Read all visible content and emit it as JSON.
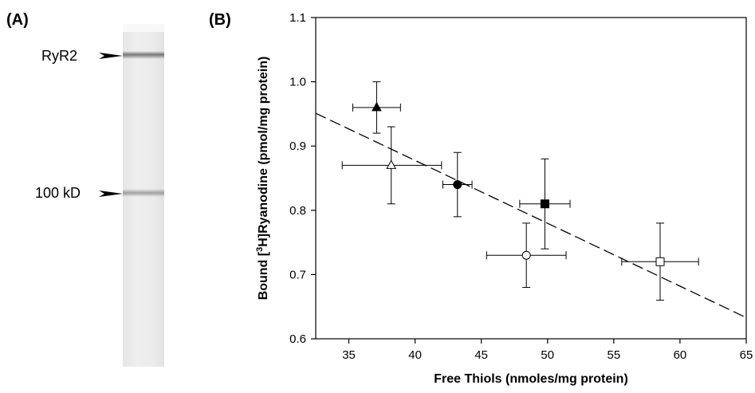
{
  "panel_a": {
    "label": "(A)",
    "bands": [
      {
        "name": "RyR2"
      },
      {
        "name": "100 kD"
      }
    ]
  },
  "panel_b": {
    "label": "(B)"
  },
  "chart_data": {
    "type": "scatter",
    "title": "",
    "xlabel": "Free Thiols (nmoles/mg protein)",
    "ylabel_parts": [
      "Bound [",
      "3",
      "H]Ryanodine (pmol/mg protein)"
    ],
    "xlim": [
      32.5,
      65
    ],
    "ylim": [
      0.6,
      1.1
    ],
    "x_ticks": [
      35,
      40,
      45,
      50,
      55,
      60,
      65
    ],
    "y_ticks": [
      0.6,
      0.7,
      0.8,
      0.9,
      1.0,
      1.1
    ],
    "x_tick_labels": [
      "35",
      "40",
      "45",
      "50",
      "55",
      "60",
      "65"
    ],
    "y_tick_labels": [
      "0.6",
      "0.7",
      "0.8",
      "0.9",
      "1.0",
      "1.1"
    ],
    "grid": false,
    "points": [
      {
        "marker": "triangle-filled",
        "x": 37.1,
        "y": 0.96,
        "x_err": [
          35.3,
          38.9
        ],
        "y_err": [
          0.92,
          1.0
        ]
      },
      {
        "marker": "triangle-open",
        "x": 38.2,
        "y": 0.87,
        "x_err": [
          34.5,
          42.0
        ],
        "y_err": [
          0.81,
          0.93
        ]
      },
      {
        "marker": "circle-filled",
        "x": 43.2,
        "y": 0.84,
        "x_err": [
          42.1,
          44.3
        ],
        "y_err": [
          0.79,
          0.89
        ]
      },
      {
        "marker": "square-filled",
        "x": 49.8,
        "y": 0.81,
        "x_err": [
          47.9,
          51.7
        ],
        "y_err": [
          0.74,
          0.88
        ]
      },
      {
        "marker": "circle-open",
        "x": 48.4,
        "y": 0.73,
        "x_err": [
          45.4,
          51.4
        ],
        "y_err": [
          0.68,
          0.78
        ]
      },
      {
        "marker": "square-open",
        "x": 58.5,
        "y": 0.72,
        "x_err": [
          55.6,
          61.4
        ],
        "y_err": [
          0.66,
          0.78
        ]
      }
    ],
    "fit_line": {
      "style": "dashed",
      "x": [
        32.5,
        65
      ],
      "y": [
        0.951,
        0.633
      ]
    }
  }
}
